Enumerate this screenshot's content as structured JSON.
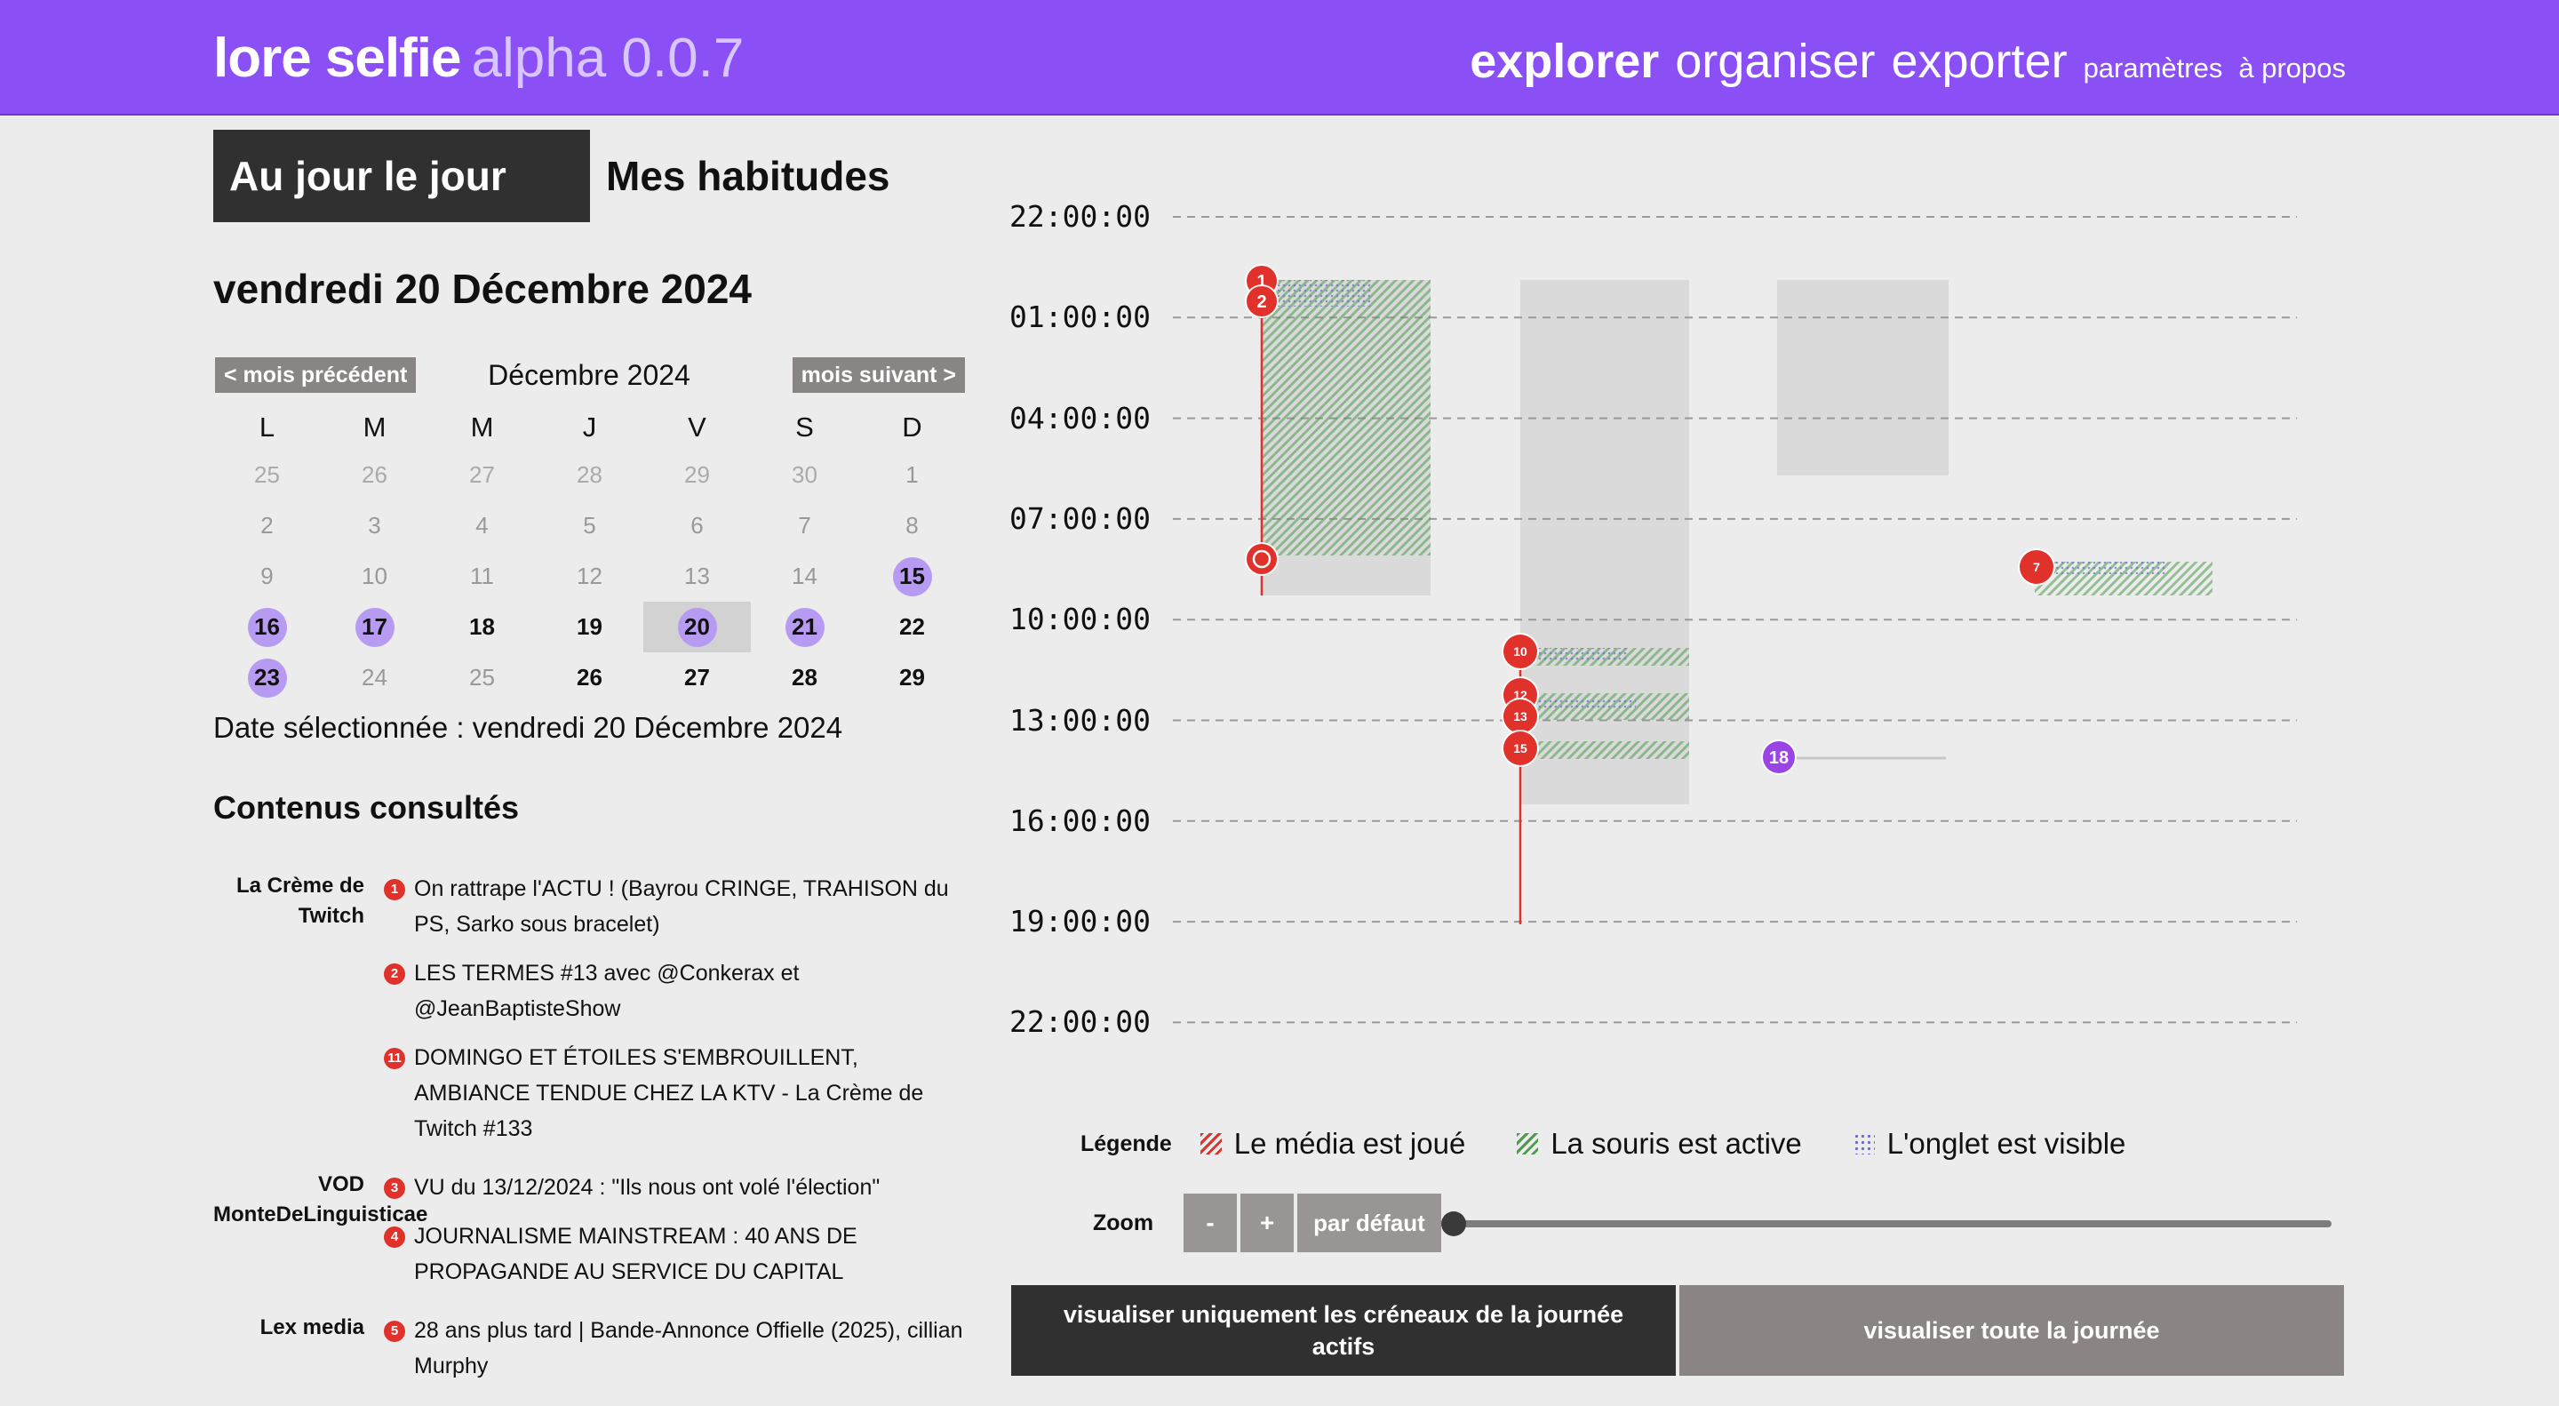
{
  "header": {
    "app_name": "lore selfie",
    "version": "alpha 0.0.7",
    "nav": [
      "explorer",
      "organiser",
      "exporter"
    ],
    "nav_small": [
      "paramètres",
      "à propos"
    ]
  },
  "tabs": [
    "Au jour le jour",
    "Mes habitudes"
  ],
  "date_title": "vendredi 20 Décembre 2024",
  "calendar": {
    "prev_label": "< mois précédent",
    "next_label": "mois suivant >",
    "month_label": "Décembre 2024",
    "weekdays": [
      "L",
      "M",
      "M",
      "J",
      "V",
      "S",
      "D"
    ],
    "weeks": [
      [
        {
          "d": "25",
          "s": "other"
        },
        {
          "d": "26",
          "s": "other"
        },
        {
          "d": "27",
          "s": "other"
        },
        {
          "d": "28",
          "s": "other"
        },
        {
          "d": "29",
          "s": "other"
        },
        {
          "d": "30",
          "s": "other"
        },
        {
          "d": "1",
          "s": "dim"
        }
      ],
      [
        {
          "d": "2",
          "s": "dim"
        },
        {
          "d": "3",
          "s": "dim"
        },
        {
          "d": "4",
          "s": "dim"
        },
        {
          "d": "5",
          "s": "dim"
        },
        {
          "d": "6",
          "s": "dim"
        },
        {
          "d": "7",
          "s": "dim"
        },
        {
          "d": "8",
          "s": "dim"
        }
      ],
      [
        {
          "d": "9",
          "s": "dim"
        },
        {
          "d": "10",
          "s": "dim"
        },
        {
          "d": "11",
          "s": "dim"
        },
        {
          "d": "12",
          "s": "dim"
        },
        {
          "d": "13",
          "s": "dim"
        },
        {
          "d": "14",
          "s": "dim"
        },
        {
          "d": "15",
          "s": "bold",
          "dot": true
        }
      ],
      [
        {
          "d": "16",
          "s": "bold",
          "dot": true
        },
        {
          "d": "17",
          "s": "bold",
          "dot": true
        },
        {
          "d": "18",
          "s": "bold"
        },
        {
          "d": "19",
          "s": "bold"
        },
        {
          "d": "20",
          "s": "bold",
          "dot": true,
          "selected": true
        },
        {
          "d": "21",
          "s": "bold",
          "dot": true
        },
        {
          "d": "22",
          "s": "bold"
        }
      ],
      [
        {
          "d": "23",
          "s": "bold",
          "dot": true
        },
        {
          "d": "24",
          "s": "dim"
        },
        {
          "d": "25",
          "s": "dim"
        },
        {
          "d": "26",
          "s": "bold"
        },
        {
          "d": "27",
          "s": "bold"
        },
        {
          "d": "28",
          "s": "bold"
        },
        {
          "d": "29",
          "s": "bold"
        }
      ]
    ]
  },
  "selected_date_text": "Date sélectionnée : vendredi 20 Décembre 2024",
  "contents_title": "Contenus consultés",
  "contents": [
    {
      "source": "La Crème de Twitch",
      "items": [
        {
          "n": "1",
          "text": "On rattrape l'ACTU ! (Bayrou CRINGE, TRAHISON du PS, Sarko sous bracelet)"
        },
        {
          "n": "2",
          "text": "LES TERMES #13 avec @Conkerax et @JeanBaptisteShow"
        },
        {
          "n": "11",
          "text": "DOMINGO ET ÉTOILES S'EMBROUILLENT, AMBIANCE TENDUE CHEZ LA KTV - La Crème de Twitch #133"
        }
      ]
    },
    {
      "source": "VOD MonteDeLinguisticae",
      "items": [
        {
          "n": "3",
          "text": "VU du 13/12/2024 : \"Ils nous ont volé l'élection\""
        },
        {
          "n": "4",
          "text": "JOURNALISME MAINSTREAM : 40 ANS DE PROPAGANDE AU SERVICE DU CAPITAL"
        }
      ]
    },
    {
      "source": "Lex media",
      "items": [
        {
          "n": "5",
          "text": "28 ans plus tard | Bande-Annonce Offielle (2025), cillian Murphy"
        }
      ]
    }
  ],
  "timeline": {
    "ticks": [
      "22:00:00",
      "01:00:00",
      "04:00:00",
      "07:00:00",
      "10:00:00",
      "13:00:00",
      "16:00:00",
      "19:00:00",
      "22:00:00",
      "01:00:00"
    ],
    "markers": [
      "1",
      "2",
      "10",
      "12",
      "13",
      "15",
      "7",
      "18"
    ]
  },
  "legend": {
    "title": "Légende",
    "media": "Le média est joué",
    "mouse": "La souris est active",
    "tab": "L'onglet est visible"
  },
  "zoom": {
    "label": "Zoom",
    "minus": "-",
    "plus": "+",
    "default": "par défaut",
    "level": 0
  },
  "buttons": {
    "active_only": "visualiser uniquement les créneaux de la journée actifs",
    "whole_day": "visualiser toute la journée"
  },
  "colors": {
    "header": "#8b4ff6",
    "accent_dot": "#b79af2",
    "marker": "#e0312b",
    "mouse": "#4e9a4e",
    "tab": "#6b6bd6"
  }
}
